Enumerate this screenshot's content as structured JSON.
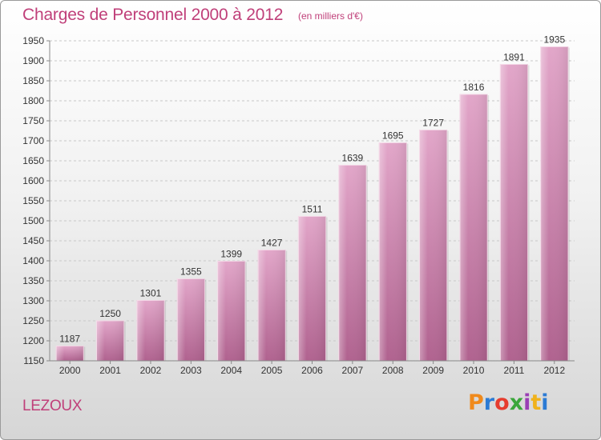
{
  "header": {
    "title": "Charges de Personnel 2000 à 2012",
    "subtitle": "(en milliers d'€)"
  },
  "footer": {
    "city": "LEZOUX",
    "logo_text": "Proxiti",
    "logo_colors": [
      "#f08a1c",
      "#2c7bd4",
      "#e63c2e",
      "#3aa63a",
      "#9a3fb5",
      "#f0b21c",
      "#2c7bd4"
    ]
  },
  "chart_data": {
    "type": "bar",
    "title": "Charges de Personnel 2000 à 2012",
    "subtitle": "(en milliers d'€)",
    "categories": [
      "2000",
      "2001",
      "2002",
      "2003",
      "2004",
      "2005",
      "2006",
      "2007",
      "2008",
      "2009",
      "2010",
      "2011",
      "2012"
    ],
    "values": [
      1187,
      1250,
      1301,
      1355,
      1399,
      1427,
      1511,
      1639,
      1695,
      1727,
      1816,
      1891,
      1935
    ],
    "ylim": [
      1150,
      1950
    ],
    "yticks": [
      1150,
      1200,
      1250,
      1300,
      1350,
      1400,
      1450,
      1500,
      1550,
      1600,
      1650,
      1700,
      1750,
      1800,
      1850,
      1900,
      1950
    ],
    "grid": true,
    "bar_color": "#d98bb8",
    "label_color": "#333333"
  }
}
